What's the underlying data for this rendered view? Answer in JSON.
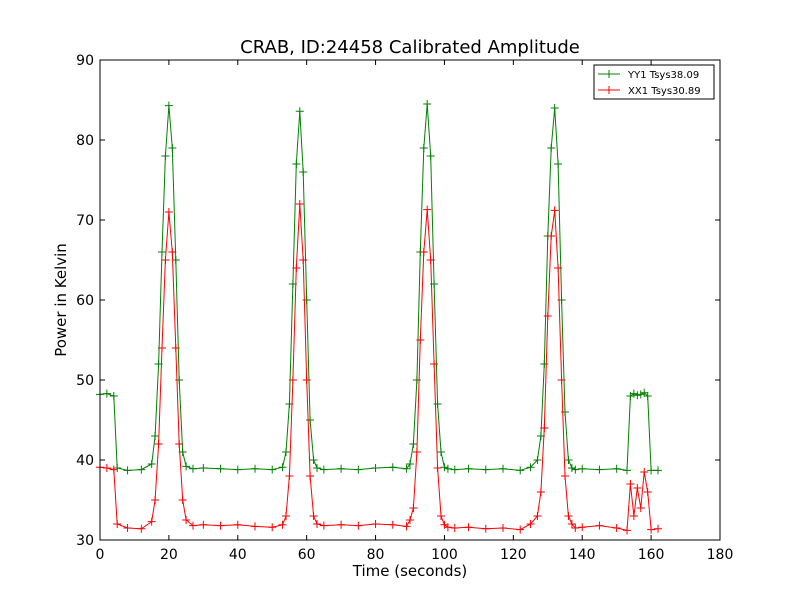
{
  "chart_data": {
    "type": "line",
    "title": "CRAB, ID:24458 Calibrated Amplitude",
    "xlabel": "Time (seconds)",
    "ylabel": "Power in Kelvin",
    "xlim": [
      0,
      180
    ],
    "ylim": [
      30,
      90
    ],
    "xticks": [
      0,
      20,
      40,
      60,
      80,
      100,
      120,
      140,
      160,
      180
    ],
    "yticks": [
      30,
      40,
      50,
      60,
      70,
      80,
      90
    ],
    "grid": false,
    "legend_position": "top-right",
    "marker": "+",
    "series": [
      {
        "name": "YY1 Tsys38.09",
        "color": "#008000",
        "x": [
          0,
          2,
          4,
          5,
          8,
          12,
          15,
          16,
          17,
          18,
          19,
          20,
          21,
          22,
          23,
          24,
          25,
          27,
          30,
          35,
          40,
          45,
          50,
          53,
          54,
          55,
          56,
          57,
          58,
          59,
          60,
          61,
          62,
          63,
          65,
          70,
          75,
          80,
          85,
          89,
          90,
          91,
          92,
          93,
          94,
          95,
          96,
          97,
          98,
          99,
          100,
          101,
          103,
          107,
          112,
          117,
          122,
          125,
          127,
          128,
          129,
          130,
          131,
          132,
          133,
          134,
          135,
          136,
          137,
          138,
          140,
          145,
          150,
          153,
          154,
          155,
          156,
          157,
          158,
          159,
          160,
          162
        ],
        "y": [
          48.2,
          48.3,
          48.0,
          39.0,
          38.7,
          38.8,
          39.5,
          43,
          52,
          66,
          78,
          84.3,
          79,
          65,
          50,
          41,
          39.2,
          38.9,
          39.0,
          38.9,
          38.8,
          38.9,
          38.8,
          39.1,
          41,
          47,
          62,
          77,
          83.6,
          76,
          60,
          45,
          40,
          39.0,
          38.8,
          38.9,
          38.8,
          39.0,
          39.1,
          38.9,
          39.5,
          42,
          50,
          66,
          79,
          84.5,
          78,
          62,
          47,
          41,
          39.1,
          38.9,
          38.8,
          38.9,
          38.8,
          38.9,
          38.7,
          39.1,
          40,
          43,
          52,
          68,
          79,
          84.0,
          77,
          60,
          46,
          40,
          39.0,
          38.8,
          38.9,
          38.8,
          38.9,
          38.7,
          48.0,
          48.3,
          48.1,
          48.2,
          48.4,
          48.0,
          38.7,
          38.7
        ]
      },
      {
        "name": "XX1 Tsys30.89",
        "color": "#ff0000",
        "x": [
          0,
          2,
          4,
          5,
          8,
          12,
          15,
          16,
          17,
          18,
          19,
          20,
          21,
          22,
          23,
          24,
          25,
          27,
          30,
          35,
          40,
          45,
          50,
          53,
          54,
          55,
          56,
          57,
          58,
          59,
          60,
          61,
          62,
          63,
          65,
          70,
          75,
          80,
          85,
          89,
          90,
          91,
          92,
          93,
          94,
          95,
          96,
          97,
          98,
          99,
          100,
          101,
          103,
          107,
          112,
          117,
          122,
          125,
          127,
          128,
          129,
          130,
          131,
          132,
          133,
          134,
          135,
          136,
          137,
          138,
          140,
          145,
          150,
          153,
          154,
          155,
          156,
          157,
          158,
          159,
          160,
          162
        ],
        "y": [
          39.1,
          39.0,
          38.8,
          32.0,
          31.5,
          31.4,
          32.3,
          35,
          42,
          54,
          65,
          71.0,
          66,
          54,
          42,
          35,
          32.5,
          31.8,
          31.9,
          31.8,
          31.9,
          31.7,
          31.6,
          31.9,
          33,
          38,
          50,
          64,
          72.0,
          65,
          50,
          38,
          33,
          32.0,
          31.8,
          31.9,
          31.8,
          32.0,
          31.9,
          31.7,
          32.5,
          34,
          41,
          55,
          66,
          71.3,
          65,
          52,
          39,
          33,
          31.9,
          31.6,
          31.5,
          31.6,
          31.4,
          31.5,
          31.3,
          32.0,
          33,
          36,
          44,
          58,
          68,
          71.2,
          64,
          50,
          38,
          33,
          32.0,
          31.5,
          31.6,
          31.8,
          31.5,
          31.2,
          37.0,
          33.0,
          36.5,
          34.0,
          38.5,
          36.0,
          31.3,
          31.4
        ]
      }
    ]
  }
}
